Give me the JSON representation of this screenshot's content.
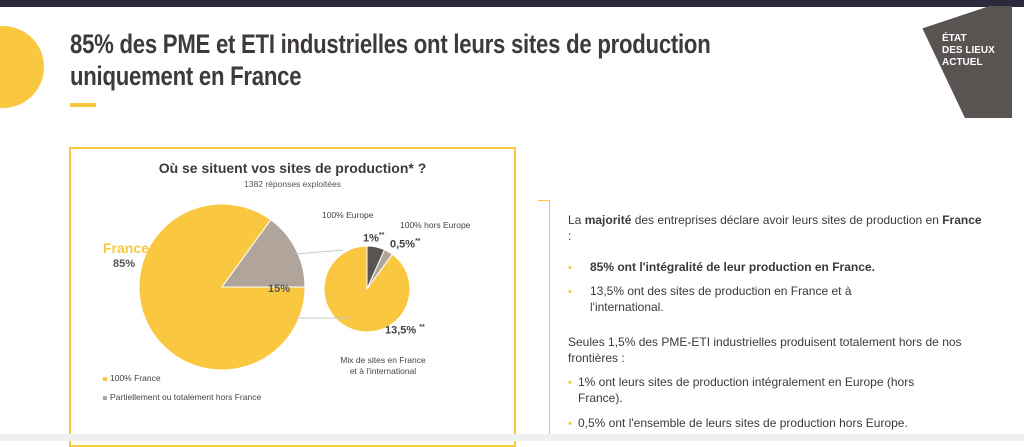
{
  "header": {
    "title_line1": "85% des PME et ETI industrielles ont leurs sites de production",
    "title_line2": "uniquement en France",
    "tag_lines": [
      "ÉTAT",
      "DES LIEUX",
      "ACTUEL"
    ]
  },
  "colors": {
    "accent": "#f9c740",
    "gray_slice": "#b1a49a",
    "dark_slice": "#595352",
    "tag_bg": "#595352",
    "title": "#3e3a39"
  },
  "chart": {
    "title": "Où se situent vos sites de production* ?",
    "subtitle": "1382 réponses exploitées",
    "label_france": "France",
    "label_85": "85%",
    "label_15": "15%",
    "label_europe": "100% Europe",
    "label_hors_europe": "100% hors Europe",
    "label_1": "1%",
    "label_05": "0,5%",
    "label_135": "13,5%",
    "stars": "**",
    "label_mix_line1": "Mix de sites en France",
    "label_mix_line2": "et à l'international",
    "legend": [
      "100% France",
      "Partiellement ou totalement hors France"
    ]
  },
  "chart_data": [
    {
      "type": "pie",
      "title": "Où se situent vos sites de production* ?",
      "subtitle": "1382 réponses exploitées",
      "slices": [
        {
          "label": "100% France",
          "value": 85
        },
        {
          "label": "Partiellement ou totalement hors France",
          "value": 15
        }
      ]
    },
    {
      "type": "pie",
      "slices": [
        {
          "label": "Mix de sites en France et à l'international",
          "value": 13.5
        },
        {
          "label": "100% Europe",
          "value": 1
        },
        {
          "label": "100% hors Europe",
          "value": 0.5
        }
      ]
    }
  ],
  "text": {
    "intro_a": "La ",
    "intro_bold1": "majorité",
    "intro_b": " des entreprises déclare avoir leurs sites de production en ",
    "intro_bold2": "France",
    "intro_c": " :",
    "bullet1": "85% ont l'intégralité de leur production en France.",
    "bullet2": "13,5% ont des sites de production en France et à l'international.",
    "para2": "Seules 1,5% des PME-ETI industrielles produisent totalement hors de nos frontières :",
    "bullet3": "1% ont leurs sites de production intégralement en Europe (hors France).",
    "bullet4": "0,5% ont l'ensemble de leurs sites de production hors Europe.",
    "bullet_char": "•"
  }
}
